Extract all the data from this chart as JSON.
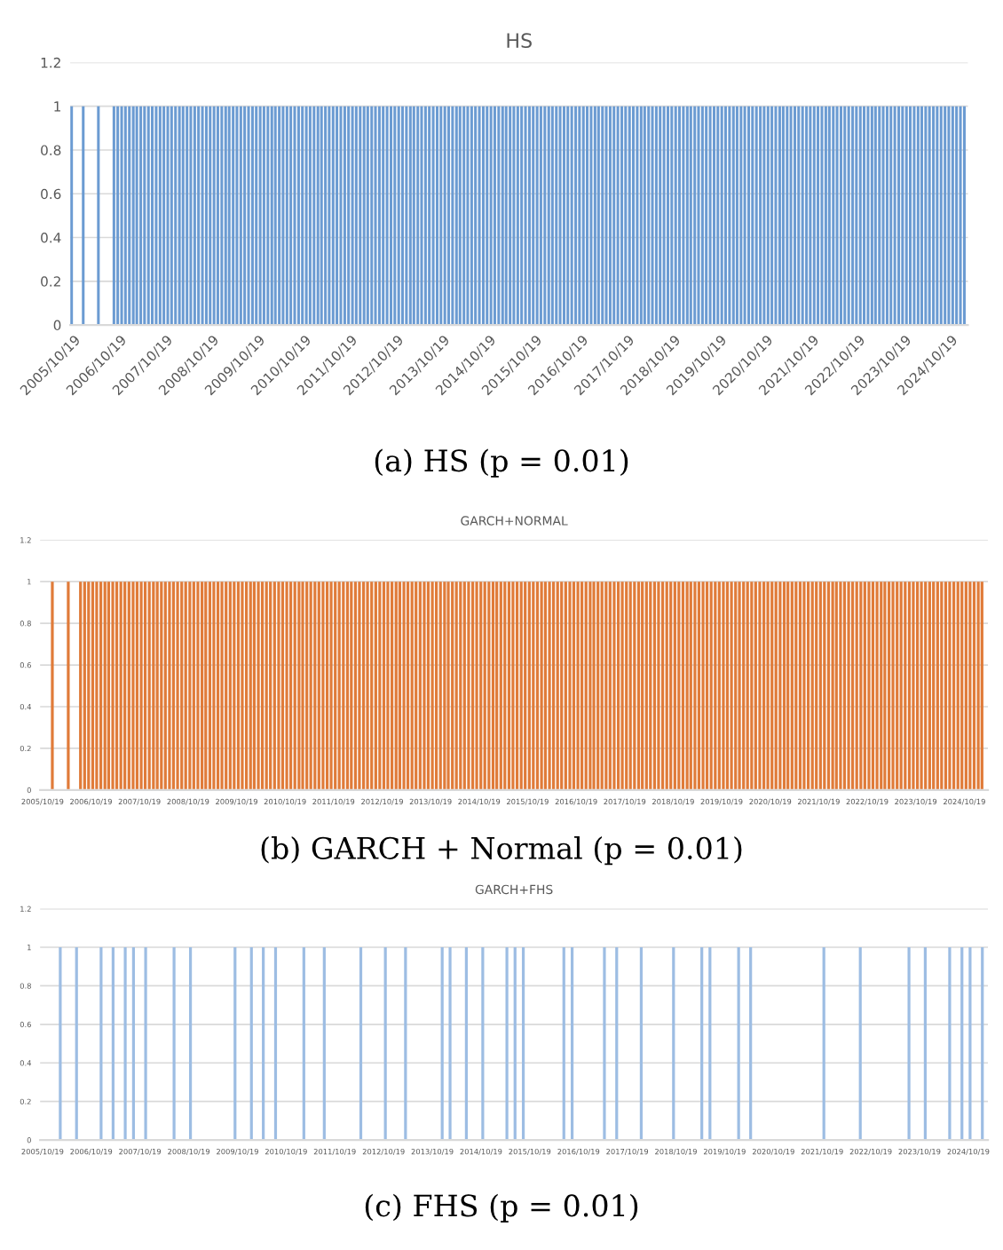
{
  "chart_data": [
    {
      "type": "bar",
      "title": "HS",
      "annotations": [
        "(a) HS (p = 0.01)"
      ],
      "x": [
        "2005-10",
        "2006-01",
        "2006-05",
        "2006-09",
        "2006-10",
        "2006-11",
        "2006-12",
        "2007-01",
        "2007-02",
        "2007-03",
        "2007-04",
        "2007-05",
        "2007-06",
        "2007-07",
        "2007-08",
        "2007-09",
        "2007-10",
        "2007-11",
        "2007-12",
        "2008-01",
        "2008-02",
        "2008-03",
        "2008-04",
        "2008-05",
        "2008-06",
        "2008-07",
        "2008-08",
        "2008-09",
        "2008-10",
        "2008-11",
        "2008-12",
        "2009-01",
        "2009-02",
        "2009-03",
        "2009-04",
        "2009-05",
        "2009-06",
        "2009-07",
        "2009-08",
        "2009-09",
        "2009-10",
        "2009-11",
        "2009-12",
        "2010-01",
        "2010-02",
        "2010-03",
        "2010-04",
        "2010-05",
        "2010-06",
        "2010-07",
        "2010-08",
        "2010-09",
        "2010-10",
        "2010-11",
        "2010-12",
        "2011-01",
        "2011-02",
        "2011-03",
        "2011-04",
        "2011-05",
        "2011-06",
        "2011-07",
        "2011-08",
        "2011-09",
        "2011-10",
        "2011-11",
        "2011-12",
        "2012-01",
        "2012-02",
        "2012-03",
        "2012-04",
        "2012-05",
        "2012-06",
        "2012-07",
        "2012-08",
        "2012-09",
        "2012-10",
        "2012-11",
        "2012-12",
        "2013-01",
        "2013-02",
        "2013-03",
        "2013-04",
        "2013-05",
        "2013-06",
        "2013-07",
        "2013-08",
        "2013-09",
        "2013-10",
        "2013-11",
        "2013-12",
        "2014-01",
        "2014-02",
        "2014-03",
        "2014-04",
        "2014-05",
        "2014-06",
        "2014-07",
        "2014-08",
        "2014-09",
        "2014-10",
        "2014-11",
        "2014-12",
        "2015-01",
        "2015-02",
        "2015-03",
        "2015-04",
        "2015-05",
        "2015-06",
        "2015-07",
        "2015-08",
        "2015-09",
        "2015-10",
        "2015-11",
        "2015-12",
        "2016-01",
        "2016-02",
        "2016-03",
        "2016-04",
        "2016-05",
        "2016-06",
        "2016-07",
        "2016-08",
        "2016-09",
        "2016-10",
        "2016-11",
        "2016-12",
        "2017-01",
        "2017-02",
        "2017-03",
        "2017-04",
        "2017-05",
        "2017-06",
        "2017-07",
        "2017-08",
        "2017-09",
        "2017-10",
        "2017-11",
        "2017-12",
        "2018-01",
        "2018-02",
        "2018-03",
        "2018-04",
        "2018-05",
        "2018-06",
        "2018-07",
        "2018-08",
        "2018-09",
        "2018-10",
        "2018-11",
        "2018-12",
        "2019-01",
        "2019-02",
        "2019-03",
        "2019-04",
        "2019-05",
        "2019-06",
        "2019-07",
        "2019-08",
        "2019-09",
        "2019-10",
        "2019-11",
        "2019-12",
        "2020-01",
        "2020-02",
        "2020-03",
        "2020-04",
        "2020-05",
        "2020-06",
        "2020-07",
        "2020-08",
        "2020-09",
        "2020-10",
        "2020-11",
        "2020-12",
        "2021-01",
        "2021-02",
        "2021-03",
        "2021-04",
        "2021-05",
        "2021-06",
        "2021-07",
        "2021-08",
        "2021-09",
        "2021-10",
        "2021-11",
        "2021-12",
        "2022-01",
        "2022-02",
        "2022-03",
        "2022-04",
        "2022-05",
        "2022-06",
        "2022-07",
        "2022-08",
        "2022-09",
        "2022-10",
        "2022-11",
        "2022-12",
        "2023-01",
        "2023-02",
        "2023-03",
        "2023-04",
        "2023-05",
        "2023-06",
        "2023-07",
        "2023-08",
        "2023-09",
        "2023-10",
        "2023-11",
        "2023-12",
        "2024-01",
        "2024-02",
        "2024-03",
        "2024-04",
        "2024-05",
        "2024-06",
        "2024-07",
        "2024-08",
        "2024-09",
        "2024-10",
        "2024-11",
        "2024-12",
        "2025-01",
        "2025-02"
      ],
      "series": [
        {
          "color": "#6b9bd2",
          "values": [
            1,
            1,
            1,
            1,
            1,
            1,
            1,
            1,
            1,
            1,
            1,
            1,
            1,
            1,
            1,
            1,
            1,
            1,
            1,
            1,
            1,
            1,
            1,
            1,
            1,
            1,
            1,
            1,
            1,
            1,
            1,
            1,
            1,
            1,
            1,
            1,
            1,
            1,
            1,
            1,
            1,
            1,
            1,
            1,
            1,
            1,
            1,
            1,
            1,
            1,
            1,
            1,
            1,
            1,
            1,
            1,
            1,
            1,
            1,
            1,
            1,
            1,
            1,
            1,
            1,
            1,
            1,
            1,
            1,
            1,
            1,
            1,
            1,
            1,
            1,
            1,
            1,
            1,
            1,
            1,
            1,
            1,
            1,
            1,
            1,
            1,
            1,
            1,
            1,
            1,
            1,
            1,
            1,
            1,
            1,
            1,
            1,
            1,
            1,
            1,
            1,
            1,
            1,
            1,
            1,
            1,
            1,
            1,
            1,
            1,
            1,
            1,
            1,
            1,
            1,
            1,
            1,
            1,
            1,
            1,
            1,
            1,
            1,
            1,
            1,
            1,
            1,
            1,
            1,
            1,
            1,
            1,
            1,
            1,
            1,
            1,
            1,
            1,
            1,
            1,
            1,
            1,
            1,
            1,
            1,
            1,
            1,
            1,
            1,
            1,
            1,
            1,
            1,
            1,
            1,
            1,
            1,
            1,
            1,
            1,
            1,
            1,
            1,
            1,
            1,
            1,
            1,
            1,
            1,
            1,
            1,
            1,
            1,
            1,
            1,
            1,
            1,
            1,
            1,
            1,
            1,
            1,
            1,
            1,
            1,
            1,
            1,
            1,
            1,
            1,
            1,
            1,
            1,
            1,
            1,
            1,
            1,
            1,
            1,
            1,
            1,
            1,
            1,
            1,
            1,
            1,
            1,
            1,
            1,
            1,
            1,
            1,
            1,
            1,
            1,
            1,
            1,
            1,
            1,
            1,
            1,
            1,
            1,
            1,
            1
          ]
        }
      ],
      "xlim": [
        "2005-09-20",
        "2025-03-01"
      ],
      "xticks": [
        {
          "value": "2005-10-19",
          "label": "2005/10/19"
        },
        {
          "value": "2006-10-19",
          "label": "2006/10/19"
        },
        {
          "value": "2007-10-19",
          "label": "2007/10/19"
        },
        {
          "value": "2008-10-19",
          "label": "2008/10/19"
        },
        {
          "value": "2009-10-19",
          "label": "2009/10/19"
        },
        {
          "value": "2010-10-19",
          "label": "2010/10/19"
        },
        {
          "value": "2011-10-19",
          "label": "2011/10/19"
        },
        {
          "value": "2012-10-19",
          "label": "2012/10/19"
        },
        {
          "value": "2013-10-19",
          "label": "2013/10/19"
        },
        {
          "value": "2014-10-19",
          "label": "2014/10/19"
        },
        {
          "value": "2015-10-19",
          "label": "2015/10/19"
        },
        {
          "value": "2016-10-19",
          "label": "2016/10/19"
        },
        {
          "value": "2017-10-19",
          "label": "2017/10/19"
        },
        {
          "value": "2018-10-19",
          "label": "2018/10/19"
        },
        {
          "value": "2019-10-19",
          "label": "2019/10/19"
        },
        {
          "value": "2020-10-19",
          "label": "2020/10/19"
        },
        {
          "value": "2021-10-19",
          "label": "2021/10/19"
        },
        {
          "value": "2022-10-19",
          "label": "2022/10/19"
        },
        {
          "value": "2023-10-19",
          "label": "2023/10/19"
        },
        {
          "value": "2024-10-19",
          "label": "2024/10/19"
        }
      ],
      "ylim": [
        0,
        1.2
      ],
      "yticks": [
        0,
        0.2,
        0.4,
        0.6,
        0.8,
        1,
        1.2
      ],
      "grid": "y"
    },
    {
      "type": "bar",
      "title": "GARCH+NORMAL",
      "annotations": [
        "(b) GARCH + Normal (p = 0.01)"
      ],
      "x": [
        "2006-01",
        "2006-05",
        "2006-08",
        "2006-09",
        "2006-10",
        "2006-11",
        "2006-12",
        "2007-01",
        "2007-02",
        "2007-03",
        "2007-04",
        "2007-05",
        "2007-06",
        "2007-07",
        "2007-08",
        "2007-09",
        "2007-10",
        "2007-11",
        "2007-12",
        "2008-01",
        "2008-02",
        "2008-03",
        "2008-04",
        "2008-05",
        "2008-06",
        "2008-07",
        "2008-08",
        "2008-09",
        "2008-10",
        "2008-11",
        "2008-12",
        "2009-01",
        "2009-02",
        "2009-03",
        "2009-04",
        "2009-05",
        "2009-06",
        "2009-07",
        "2009-08",
        "2009-09",
        "2009-10",
        "2009-11",
        "2009-12",
        "2010-01",
        "2010-02",
        "2010-03",
        "2010-04",
        "2010-05",
        "2010-06",
        "2010-07",
        "2010-08",
        "2010-09",
        "2010-10",
        "2010-11",
        "2010-12",
        "2011-01",
        "2011-02",
        "2011-03",
        "2011-04",
        "2011-05",
        "2011-06",
        "2011-07",
        "2011-08",
        "2011-09",
        "2011-10",
        "2011-11",
        "2011-12",
        "2012-01",
        "2012-02",
        "2012-03",
        "2012-04",
        "2012-05",
        "2012-06",
        "2012-07",
        "2012-08",
        "2012-09",
        "2012-10",
        "2012-11",
        "2012-12",
        "2013-01",
        "2013-02",
        "2013-03",
        "2013-04",
        "2013-05",
        "2013-06",
        "2013-07",
        "2013-08",
        "2013-09",
        "2013-10",
        "2013-11",
        "2013-12",
        "2014-01",
        "2014-02",
        "2014-03",
        "2014-04",
        "2014-05",
        "2014-06",
        "2014-07",
        "2014-08",
        "2014-09",
        "2014-10",
        "2014-11",
        "2014-12",
        "2015-01",
        "2015-02",
        "2015-03",
        "2015-04",
        "2015-05",
        "2015-06",
        "2015-07",
        "2015-08",
        "2015-09",
        "2015-10",
        "2015-11",
        "2015-12",
        "2016-01",
        "2016-02",
        "2016-03",
        "2016-04",
        "2016-05",
        "2016-06",
        "2016-07",
        "2016-08",
        "2016-09",
        "2016-10",
        "2016-11",
        "2016-12",
        "2017-01",
        "2017-02",
        "2017-03",
        "2017-04",
        "2017-05",
        "2017-06",
        "2017-07",
        "2017-08",
        "2017-09",
        "2017-10",
        "2017-11",
        "2017-12",
        "2018-01",
        "2018-02",
        "2018-03",
        "2018-04",
        "2018-05",
        "2018-06",
        "2018-07",
        "2018-08",
        "2018-09",
        "2018-10",
        "2018-11",
        "2018-12",
        "2019-01",
        "2019-02",
        "2019-03",
        "2019-04",
        "2019-05",
        "2019-06",
        "2019-07",
        "2019-08",
        "2019-09",
        "2019-10",
        "2019-11",
        "2019-12",
        "2020-01",
        "2020-02",
        "2020-03",
        "2020-04",
        "2020-05",
        "2020-06",
        "2020-07",
        "2020-08",
        "2020-09",
        "2020-10",
        "2020-11",
        "2020-12",
        "2021-01",
        "2021-02",
        "2021-03",
        "2021-04",
        "2021-05",
        "2021-06",
        "2021-07",
        "2021-08",
        "2021-09",
        "2021-10",
        "2021-11",
        "2021-12",
        "2022-01",
        "2022-02",
        "2022-03",
        "2022-04",
        "2022-05",
        "2022-06",
        "2022-07",
        "2022-08",
        "2022-09",
        "2022-10",
        "2022-11",
        "2022-12",
        "2023-01",
        "2023-02",
        "2023-03",
        "2023-04",
        "2023-05",
        "2023-06",
        "2023-07",
        "2023-08",
        "2023-09",
        "2023-10",
        "2023-11",
        "2023-12",
        "2024-01",
        "2024-02",
        "2024-03",
        "2024-04",
        "2024-05",
        "2024-06",
        "2024-07",
        "2024-08",
        "2024-09",
        "2024-10",
        "2024-11",
        "2024-12",
        "2025-01",
        "2025-02",
        "2025-03"
      ],
      "series": [
        {
          "color": "#e07b39",
          "values": [
            1,
            1,
            1,
            1,
            1,
            1,
            1,
            1,
            1,
            1,
            1,
            1,
            1,
            1,
            1,
            1,
            1,
            1,
            1,
            1,
            1,
            1,
            1,
            1,
            1,
            1,
            1,
            1,
            1,
            1,
            1,
            1,
            1,
            1,
            1,
            1,
            1,
            1,
            1,
            1,
            1,
            1,
            1,
            1,
            1,
            1,
            1,
            1,
            1,
            1,
            1,
            1,
            1,
            1,
            1,
            1,
            1,
            1,
            1,
            1,
            1,
            1,
            1,
            1,
            1,
            1,
            1,
            1,
            1,
            1,
            1,
            1,
            1,
            1,
            1,
            1,
            1,
            1,
            1,
            1,
            1,
            1,
            1,
            1,
            1,
            1,
            1,
            1,
            1,
            1,
            1,
            1,
            1,
            1,
            1,
            1,
            1,
            1,
            1,
            1,
            1,
            1,
            1,
            1,
            1,
            1,
            1,
            1,
            1,
            1,
            1,
            1,
            1,
            1,
            1,
            1,
            1,
            1,
            1,
            1,
            1,
            1,
            1,
            1,
            1,
            1,
            1,
            1,
            1,
            1,
            1,
            1,
            1,
            1,
            1,
            1,
            1,
            1,
            1,
            1,
            1,
            1,
            1,
            1,
            1,
            1,
            1,
            1,
            1,
            1,
            1,
            1,
            1,
            1,
            1,
            1,
            1,
            1,
            1,
            1,
            1,
            1,
            1,
            1,
            1,
            1,
            1,
            1,
            1,
            1,
            1,
            1,
            1,
            1,
            1,
            1,
            1,
            1,
            1,
            1,
            1,
            1,
            1,
            1,
            1,
            1,
            1,
            1,
            1,
            1,
            1,
            1,
            1,
            1,
            1,
            1,
            1,
            1,
            1,
            1,
            1,
            1,
            1,
            1,
            1,
            1,
            1,
            1,
            1,
            1,
            1,
            1,
            1,
            1,
            1,
            1,
            1,
            1,
            1,
            1,
            1,
            1,
            1,
            1,
            1,
            1
          ]
        }
      ],
      "xlim": [
        "2005-10-01",
        "2025-04-15"
      ],
      "xticks": [
        {
          "value": "2005-10-19",
          "label": "2005/10/19"
        },
        {
          "value": "2006-10-19",
          "label": "2006/10/19"
        },
        {
          "value": "2007-10-19",
          "label": "2007/10/19"
        },
        {
          "value": "2008-10-19",
          "label": "2008/10/19"
        },
        {
          "value": "2009-10-19",
          "label": "2009/10/19"
        },
        {
          "value": "2010-10-19",
          "label": "2010/10/19"
        },
        {
          "value": "2011-10-19",
          "label": "2011/10/19"
        },
        {
          "value": "2012-10-19",
          "label": "2012/10/19"
        },
        {
          "value": "2013-10-19",
          "label": "2013/10/19"
        },
        {
          "value": "2014-10-19",
          "label": "2014/10/19"
        },
        {
          "value": "2015-10-19",
          "label": "2015/10/19"
        },
        {
          "value": "2016-10-19",
          "label": "2016/10/19"
        },
        {
          "value": "2017-10-19",
          "label": "2017/10/19"
        },
        {
          "value": "2018-10-19",
          "label": "2018/10/19"
        },
        {
          "value": "2019-10-19",
          "label": "2019/10/19"
        },
        {
          "value": "2020-10-19",
          "label": "2020/10/19"
        },
        {
          "value": "2021-10-19",
          "label": "2021/10/19"
        },
        {
          "value": "2022-10-19",
          "label": "2022/10/19"
        },
        {
          "value": "2023-10-19",
          "label": "2023/10/19"
        },
        {
          "value": "2024-10-19",
          "label": "2024/10/19"
        }
      ],
      "ylim": [
        0,
        1.2
      ],
      "yticks": [
        0,
        0.2,
        0.4,
        0.6,
        0.8,
        1,
        1.2
      ],
      "grid": "y"
    },
    {
      "type": "bar",
      "title": "GARCH+FHS",
      "annotations": [
        "(c) FHS (p = 0.01)"
      ],
      "x": [
        "2006-03",
        "2006-07",
        "2007-01",
        "2007-04",
        "2007-07",
        "2007-09",
        "2007-12",
        "2008-07",
        "2008-11",
        "2009-10",
        "2010-02",
        "2010-05",
        "2010-08",
        "2011-03",
        "2011-08",
        "2012-05",
        "2012-11",
        "2013-04",
        "2014-01",
        "2014-03",
        "2014-07",
        "2014-11",
        "2015-05",
        "2015-07",
        "2015-09",
        "2016-07",
        "2016-09",
        "2017-05",
        "2017-08",
        "2018-02",
        "2018-10",
        "2019-05",
        "2019-07",
        "2020-02",
        "2020-05",
        "2021-11",
        "2022-08",
        "2023-08",
        "2023-12",
        "2024-06",
        "2024-09",
        "2024-11",
        "2025-02"
      ],
      "series": [
        {
          "color": "#9dbde3",
          "values": [
            1,
            1,
            1,
            1,
            1,
            1,
            1,
            1,
            1,
            1,
            1,
            1,
            1,
            1,
            1,
            1,
            1,
            1,
            1,
            1,
            1,
            1,
            1,
            1,
            1,
            1,
            1,
            1,
            1,
            1,
            1,
            1,
            1,
            1,
            1,
            1,
            1,
            1,
            1,
            1,
            1,
            1,
            1
          ]
        }
      ],
      "xlim": [
        "2005-10-01",
        "2025-03-15"
      ],
      "xticks": [
        {
          "value": "2005-10-19",
          "label": "2005/10/19"
        },
        {
          "value": "2006-10-19",
          "label": "2006/10/19"
        },
        {
          "value": "2007-10-19",
          "label": "2007/10/19"
        },
        {
          "value": "2008-10-19",
          "label": "2008/10/19"
        },
        {
          "value": "2009-10-19",
          "label": "2009/10/19"
        },
        {
          "value": "2010-10-19",
          "label": "2010/10/19"
        },
        {
          "value": "2011-10-19",
          "label": "2011/10/19"
        },
        {
          "value": "2012-10-19",
          "label": "2012/10/19"
        },
        {
          "value": "2013-10-19",
          "label": "2013/10/19"
        },
        {
          "value": "2014-10-19",
          "label": "2014/10/19"
        },
        {
          "value": "2015-10-19",
          "label": "2015/10/19"
        },
        {
          "value": "2016-10-19",
          "label": "2016/10/19"
        },
        {
          "value": "2017-10-19",
          "label": "2017/10/19"
        },
        {
          "value": "2018-10-19",
          "label": "2018/10/19"
        },
        {
          "value": "2019-10-19",
          "label": "2019/10/19"
        },
        {
          "value": "2020-10-19",
          "label": "2020/10/19"
        },
        {
          "value": "2021-10-19",
          "label": "2021/10/19"
        },
        {
          "value": "2022-10-19",
          "label": "2022/10/19"
        },
        {
          "value": "2023-10-19",
          "label": "2023/10/19"
        },
        {
          "value": "2024-10-19",
          "label": "2024/10/19"
        }
      ],
      "ylim": [
        0,
        1.2
      ],
      "yticks": [
        0,
        0.2,
        0.4,
        0.6,
        0.8,
        1,
        1.2
      ],
      "grid": "y"
    }
  ]
}
